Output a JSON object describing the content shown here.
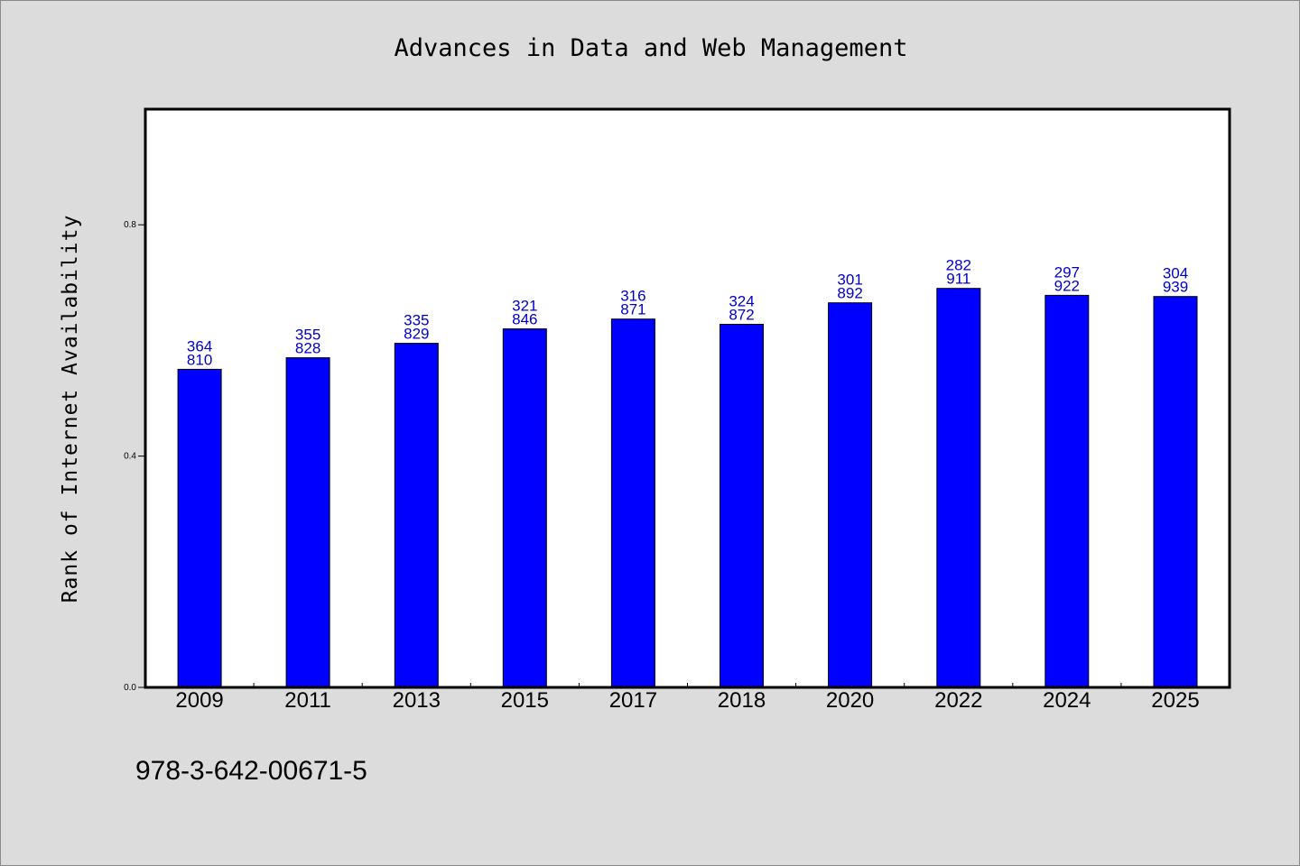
{
  "chart_data": {
    "type": "bar",
    "title": "Advances in Data and Web Management",
    "xlabel": "",
    "ylabel": "Rank of Internet Availability",
    "categories": [
      "2009",
      "2011",
      "2013",
      "2015",
      "2017",
      "2018",
      "2020",
      "2022",
      "2024",
      "2025"
    ],
    "values": [
      0.55,
      0.57,
      0.595,
      0.62,
      0.637,
      0.628,
      0.665,
      0.69,
      0.678,
      0.676
    ],
    "bar_labels": [
      [
        "364",
        "810"
      ],
      [
        "355",
        "828"
      ],
      [
        "335",
        "829"
      ],
      [
        "321",
        "846"
      ],
      [
        "316",
        "871"
      ],
      [
        "324",
        "872"
      ],
      [
        "301",
        "892"
      ],
      [
        "282",
        "911"
      ],
      [
        "297",
        "922"
      ],
      [
        "304",
        "939"
      ]
    ],
    "ylim": [
      0,
      1.0
    ],
    "yticks": [
      0.0,
      0.4,
      0.8
    ],
    "ytick_labels": [
      "0.0",
      "0.4",
      "0.8"
    ],
    "grid": false,
    "legend": "none",
    "bar_color": "#0000ff",
    "label_color": "#0000cc",
    "background_color": "#dcdcdc",
    "plot_background": "#ffffff"
  },
  "footer": {
    "isbn": "978-3-642-00671-5"
  }
}
